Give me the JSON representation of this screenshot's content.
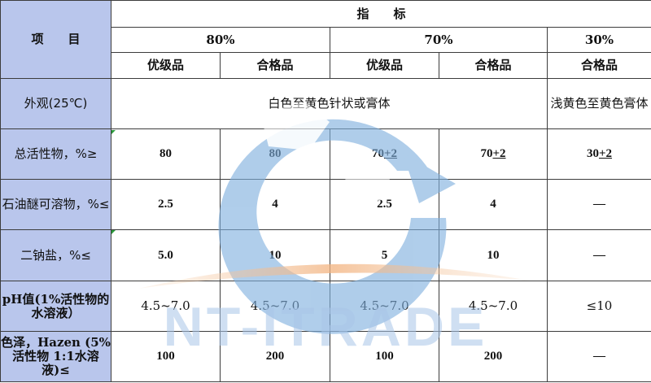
{
  "header": {
    "item_label": "项　　目",
    "spec_label": "指　　标",
    "grades": [
      "80%",
      "70%",
      "30%"
    ],
    "qualities": [
      "优级品",
      "合格品",
      "优级品",
      "合格品",
      "合格品"
    ]
  },
  "rows": {
    "appearance": {
      "label": "外观(25℃)",
      "main_value": "白色至黄色针状或膏体",
      "value_30": "浅黄色至黄色膏体"
    },
    "total_active": {
      "label": "总活性物，%≥",
      "v80_premium": "80",
      "v80_qualified": "80",
      "v70_premium_base": "70",
      "v70_premium_tol": "+2",
      "v70_qualified_base": "70",
      "v70_qualified_tol": "+2",
      "v30_base": "30",
      "v30_tol": "+2"
    },
    "petroleum_ether": {
      "label": "石油醚可溶物，%≤",
      "values": [
        "2.5",
        "4",
        "2.5",
        "4",
        "—"
      ]
    },
    "disodium": {
      "label": "二钠盐，%≤",
      "values": [
        "5.0",
        "10",
        "5",
        "10",
        "—"
      ]
    },
    "ph": {
      "label": "pH值(1%活性物的水溶液）",
      "values": [
        "4.5~7.0",
        "4.5~7.0",
        "4.5~7.0",
        "4.5~7.0",
        "≤10"
      ]
    },
    "color": {
      "label": "色泽，Hazen (5%活性物 1:1水溶液)≤",
      "values": [
        "100",
        "200",
        "100",
        "200",
        "—"
      ]
    }
  },
  "watermark": {
    "text": "NT-ITRADE",
    "colors": {
      "ring": "#8fb6de",
      "land": "#ffffff",
      "swoosh": "#f3c49a",
      "text": "#a9c5e8"
    }
  }
}
